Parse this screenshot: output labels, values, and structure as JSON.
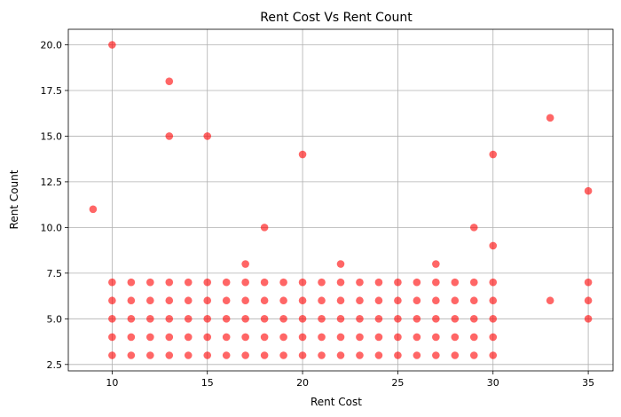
{
  "chart_data": {
    "type": "scatter",
    "title": "Rent Cost Vs Rent Count",
    "xlabel": "Rent Cost",
    "ylabel": "Rent Count",
    "xlim": [
      7.7,
      36.3
    ],
    "ylim": [
      2.15,
      20.85
    ],
    "xticks": [
      10,
      15,
      20,
      25,
      30,
      35
    ],
    "yticks": [
      2.5,
      5.0,
      7.5,
      10.0,
      12.5,
      15.0,
      17.5,
      20.0
    ],
    "xtick_labels": [
      "10",
      "15",
      "20",
      "25",
      "30",
      "35"
    ],
    "ytick_labels": [
      "2.5",
      "5.0",
      "7.5",
      "10.0",
      "12.5",
      "15.0",
      "17.5",
      "20.0"
    ],
    "grid": true,
    "marker_color": "#ff0000",
    "marker_opacity": 0.6,
    "series": [
      {
        "points": [
          [
            9,
            11
          ],
          [
            10,
            20
          ],
          [
            13,
            18
          ],
          [
            13,
            15
          ],
          [
            15,
            15
          ],
          [
            18,
            10
          ],
          [
            17,
            8
          ],
          [
            20,
            14
          ],
          [
            22,
            8
          ],
          [
            27,
            8
          ],
          [
            29,
            10
          ],
          [
            30,
            14
          ],
          [
            30,
            9
          ],
          [
            33,
            16
          ],
          [
            33,
            6
          ],
          [
            35,
            12
          ],
          [
            35,
            7
          ],
          [
            35,
            6
          ],
          [
            35,
            5
          ],
          [
            10,
            7
          ],
          [
            10,
            6
          ],
          [
            10,
            5
          ],
          [
            10,
            4
          ],
          [
            10,
            3
          ],
          [
            11,
            7
          ],
          [
            11,
            6
          ],
          [
            11,
            5
          ],
          [
            11,
            4
          ],
          [
            11,
            3
          ],
          [
            12,
            7
          ],
          [
            12,
            6
          ],
          [
            12,
            5
          ],
          [
            12,
            4
          ],
          [
            12,
            3
          ],
          [
            13,
            7
          ],
          [
            13,
            6
          ],
          [
            13,
            5
          ],
          [
            13,
            4
          ],
          [
            13,
            3
          ],
          [
            14,
            7
          ],
          [
            14,
            6
          ],
          [
            14,
            5
          ],
          [
            14,
            4
          ],
          [
            14,
            3
          ],
          [
            15,
            7
          ],
          [
            15,
            6
          ],
          [
            15,
            5
          ],
          [
            15,
            4
          ],
          [
            15,
            3
          ],
          [
            16,
            7
          ],
          [
            16,
            6
          ],
          [
            16,
            5
          ],
          [
            16,
            4
          ],
          [
            16,
            3
          ],
          [
            17,
            7
          ],
          [
            17,
            6
          ],
          [
            17,
            5
          ],
          [
            17,
            4
          ],
          [
            17,
            3
          ],
          [
            18,
            7
          ],
          [
            18,
            6
          ],
          [
            18,
            5
          ],
          [
            18,
            4
          ],
          [
            18,
            3
          ],
          [
            19,
            7
          ],
          [
            19,
            6
          ],
          [
            19,
            5
          ],
          [
            19,
            4
          ],
          [
            19,
            3
          ],
          [
            20,
            7
          ],
          [
            20,
            6
          ],
          [
            20,
            5
          ],
          [
            20,
            4
          ],
          [
            20,
            3
          ],
          [
            21,
            7
          ],
          [
            21,
            6
          ],
          [
            21,
            5
          ],
          [
            21,
            4
          ],
          [
            21,
            3
          ],
          [
            22,
            7
          ],
          [
            22,
            6
          ],
          [
            22,
            5
          ],
          [
            22,
            4
          ],
          [
            22,
            3
          ],
          [
            23,
            7
          ],
          [
            23,
            6
          ],
          [
            23,
            5
          ],
          [
            23,
            4
          ],
          [
            23,
            3
          ],
          [
            24,
            7
          ],
          [
            24,
            6
          ],
          [
            24,
            5
          ],
          [
            24,
            4
          ],
          [
            24,
            3
          ],
          [
            25,
            7
          ],
          [
            25,
            6
          ],
          [
            25,
            5
          ],
          [
            25,
            4
          ],
          [
            25,
            3
          ],
          [
            26,
            7
          ],
          [
            26,
            6
          ],
          [
            26,
            5
          ],
          [
            26,
            4
          ],
          [
            26,
            3
          ],
          [
            27,
            7
          ],
          [
            27,
            6
          ],
          [
            27,
            5
          ],
          [
            27,
            4
          ],
          [
            27,
            3
          ],
          [
            28,
            7
          ],
          [
            28,
            6
          ],
          [
            28,
            5
          ],
          [
            28,
            4
          ],
          [
            28,
            3
          ],
          [
            29,
            7
          ],
          [
            29,
            6
          ],
          [
            29,
            5
          ],
          [
            29,
            4
          ],
          [
            29,
            3
          ],
          [
            30,
            7
          ],
          [
            30,
            6
          ],
          [
            30,
            5
          ],
          [
            30,
            4
          ],
          [
            30,
            3
          ]
        ]
      }
    ]
  }
}
